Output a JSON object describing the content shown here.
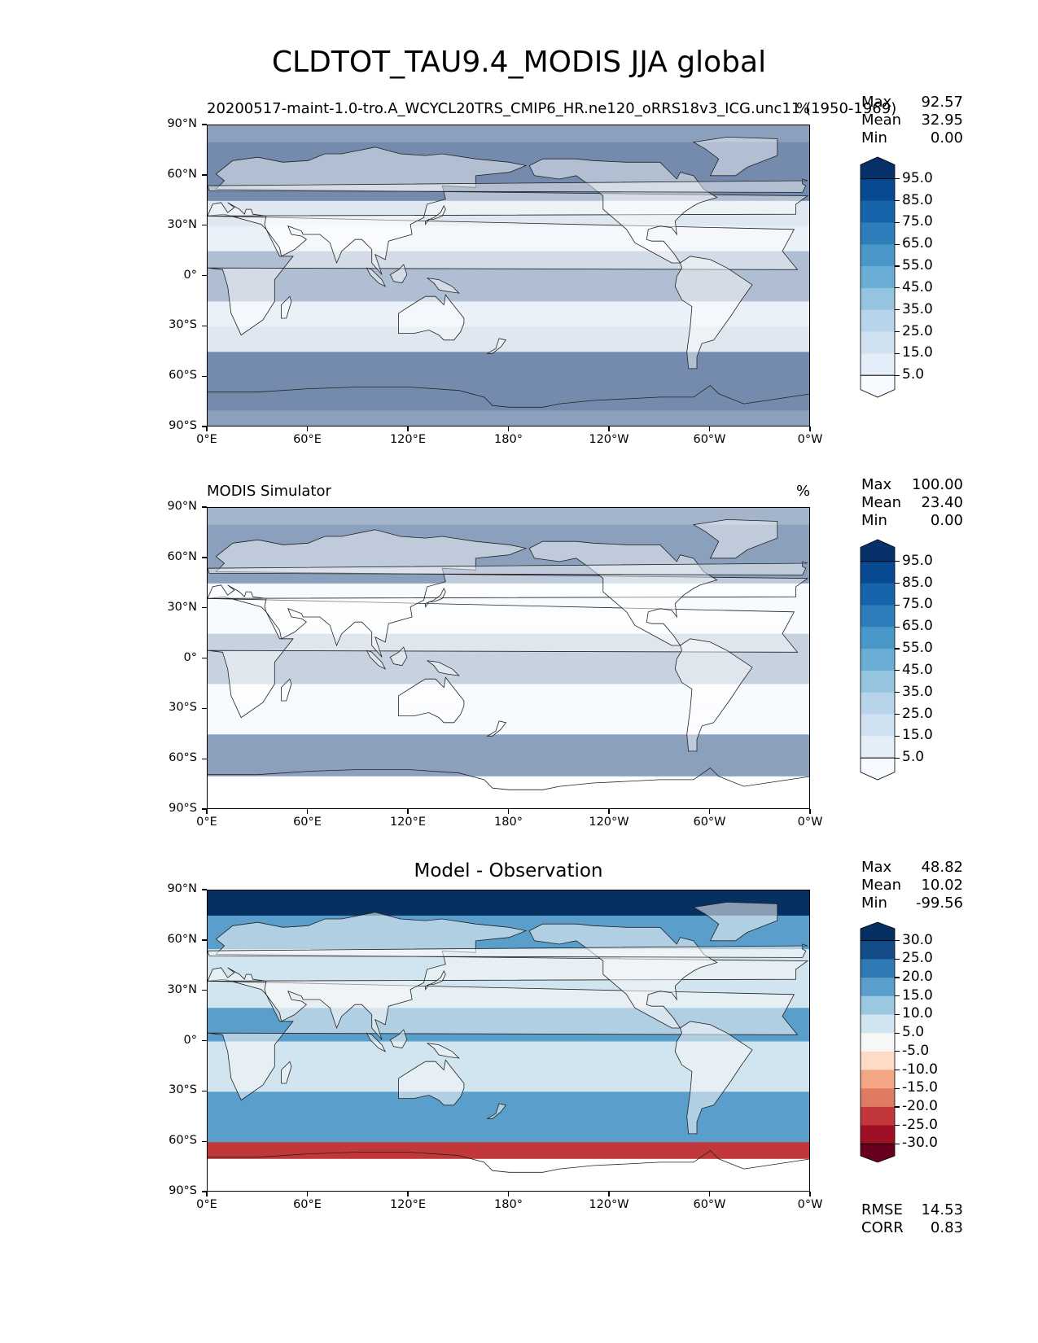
{
  "title": "CLDTOT_TAU9.4_MODIS JJA global",
  "panels": [
    {
      "id": "model",
      "left_title": "20200517-maint-1.0-tro.A_WCYCL20TRS_CMIP6_HR.ne120_oRRS18v3_ICG.unc11 (1950-1969)",
      "center_title": "",
      "units": "%",
      "stats": [
        [
          "Max",
          "92.57"
        ],
        [
          "Mean",
          "32.95"
        ],
        [
          "Min",
          "0.00"
        ]
      ],
      "colorbar_labels": [
        "95.0",
        "85.0",
        "75.0",
        "65.0",
        "55.0",
        "45.0",
        "35.0",
        "25.0",
        "15.0",
        "5.0"
      ],
      "colorbar_colors": [
        "#08306b",
        "#084a91",
        "#1764ab",
        "#2e7ebc",
        "#4a98c9",
        "#6aaed6",
        "#94c4df",
        "#b7d4ea",
        "#d0e1f2",
        "#e3eef9",
        "#f7fbff"
      ],
      "extra_stats": []
    },
    {
      "id": "obs",
      "left_title": "MODIS Simulator",
      "center_title": "",
      "units": "%",
      "stats": [
        [
          "Max",
          "100.00"
        ],
        [
          "Mean",
          "23.40"
        ],
        [
          "Min",
          "0.00"
        ]
      ],
      "colorbar_labels": [
        "95.0",
        "85.0",
        "75.0",
        "65.0",
        "55.0",
        "45.0",
        "35.0",
        "25.0",
        "15.0",
        "5.0"
      ],
      "colorbar_colors": [
        "#08306b",
        "#084a91",
        "#1764ab",
        "#2e7ebc",
        "#4a98c9",
        "#6aaed6",
        "#94c4df",
        "#b7d4ea",
        "#d0e1f2",
        "#e3eef9",
        "#f7fbff"
      ],
      "extra_stats": []
    },
    {
      "id": "diff",
      "left_title": "",
      "center_title": "Model - Observation",
      "units": "",
      "stats": [
        [
          "Max",
          "48.82"
        ],
        [
          "Mean",
          "10.02"
        ],
        [
          "Min",
          "-99.56"
        ]
      ],
      "colorbar_labels": [
        "30.0",
        "25.0",
        "20.0",
        "15.0",
        "10.0",
        "5.0",
        "-5.0",
        "-10.0",
        "-15.0",
        "-20.0",
        "-25.0",
        "-30.0"
      ],
      "colorbar_colors": [
        "#053061",
        "#134c87",
        "#2f79b5",
        "#5a9ecb",
        "#9ac8e0",
        "#d1e5f0",
        "#f7f7f7",
        "#fddbc7",
        "#f4a582",
        "#e07b63",
        "#c2383a",
        "#a01025",
        "#67001f"
      ],
      "extra_stats": [
        [
          "RMSE",
          "14.53"
        ],
        [
          "CORR",
          "0.83"
        ]
      ]
    }
  ],
  "lat_ticks": [
    "90°N",
    "60°N",
    "30°N",
    "0°",
    "30°S",
    "60°S",
    "90°S"
  ],
  "lon_ticks": [
    "0°E",
    "60°E",
    "120°E",
    "180°",
    "120°W",
    "60°W",
    "0°W"
  ]
}
